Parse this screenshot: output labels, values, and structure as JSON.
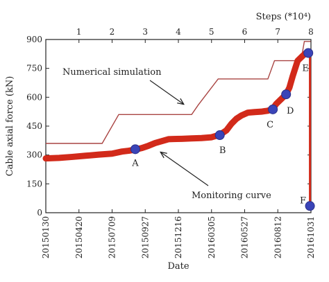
{
  "chart_data": {
    "type": "line",
    "xlabel": "Date",
    "ylabel": "Cable axial force (kN)",
    "top_axis_label": "Steps (*10⁴)",
    "x_tick_labels": [
      "20150130",
      "20150420",
      "20150709",
      "20150927",
      "20151216",
      "20160305",
      "20160527",
      "20160812",
      "20161031"
    ],
    "x_range": [
      0,
      8
    ],
    "top_ticks": [
      1,
      2,
      3,
      4,
      5,
      6,
      7,
      8
    ],
    "y_range": [
      0,
      900
    ],
    "y_ticks": [
      0,
      150,
      300,
      450,
      600,
      750,
      900
    ],
    "series": [
      {
        "name": "Numerical simulation",
        "color": "#a94442",
        "x": [
          0,
          1.7,
          2.2,
          4.4,
          4.6,
          5.2,
          6.7,
          6.9,
          7.7,
          7.8,
          7.99
        ],
        "y": [
          360,
          360,
          510,
          510,
          560,
          695,
          695,
          790,
          790,
          890,
          890
        ]
      },
      {
        "name": "Monitoring curve",
        "color": "#d22a1a",
        "x": [
          0,
          0.4,
          0.8,
          1.2,
          1.6,
          2.0,
          2.3,
          2.5,
          2.7,
          2.9,
          3.1,
          3.3,
          3.5,
          3.7,
          3.85,
          4.1,
          4.4,
          4.7,
          5.0,
          5.25,
          5.45,
          5.6,
          5.75,
          5.9,
          6.1,
          6.3,
          6.5,
          6.7,
          6.85,
          6.95,
          7.1,
          7.25,
          7.35,
          7.45,
          7.6,
          7.75,
          7.85,
          7.92,
          7.97
        ],
        "y": [
          282,
          285,
          290,
          296,
          302,
          307,
          318,
          322,
          328,
          336,
          348,
          362,
          372,
          382,
          383,
          384,
          386,
          388,
          392,
          405,
          428,
          462,
          488,
          505,
          520,
          523,
          525,
          530,
          540,
          565,
          590,
          615,
          650,
          710,
          790,
          815,
          830,
          830,
          828
        ]
      }
    ],
    "points": [
      {
        "label": "A",
        "x": 2.7,
        "y": 330
      },
      {
        "label": "B",
        "x": 5.25,
        "y": 403
      },
      {
        "label": "C",
        "x": 6.85,
        "y": 537
      },
      {
        "label": "D",
        "x": 7.25,
        "y": 615
      },
      {
        "label": "E",
        "x": 7.92,
        "y": 830
      },
      {
        "label": "F",
        "x": 7.97,
        "y": 35
      }
    ],
    "annotations": [
      {
        "text": "Numerical simulation",
        "points_to": "upper curve"
      },
      {
        "text": "Monitoring curve",
        "points_to": "lower curve"
      }
    ],
    "grid": false
  }
}
